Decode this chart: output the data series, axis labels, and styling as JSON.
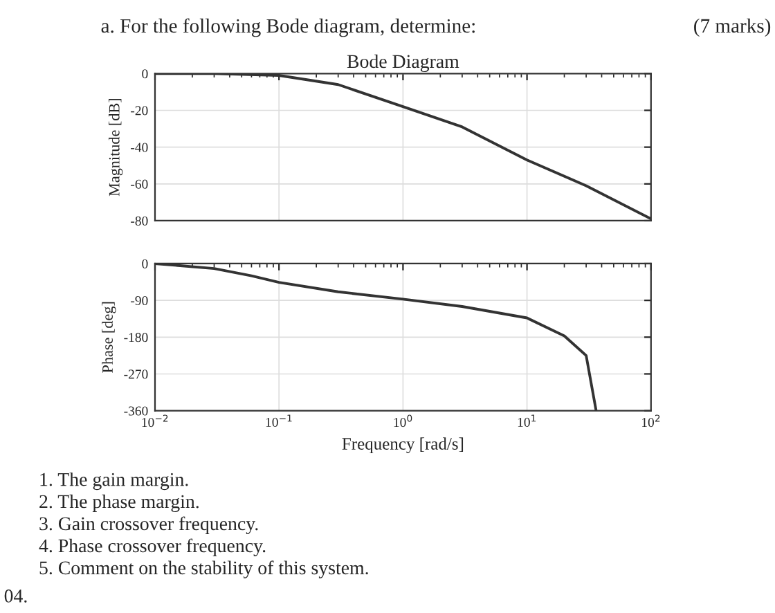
{
  "chart_data": [
    {
      "type": "line",
      "title": "Bode Diagram",
      "ylabel": "Magnitude [dB]",
      "log": "x",
      "grid": true,
      "tick_labels": "y",
      "marker": "none",
      "line_style": "solid",
      "xlim": [
        0.01,
        100
      ],
      "xticks": [
        {
          "value": 0.01,
          "label": null
        },
        {
          "value": 0.1,
          "label": null
        },
        {
          "value": 1,
          "label": null
        },
        {
          "value": 10,
          "label": null
        },
        {
          "value": 100,
          "label": null
        }
      ],
      "ylim": [
        -80,
        0
      ],
      "yticks": [
        0,
        -20,
        -40,
        -60,
        -80
      ],
      "series": [
        {
          "color": "#333333",
          "x": [
            0.01,
            0.03,
            0.1,
            0.3,
            1,
            3,
            10,
            30,
            100
          ],
          "values": [
            0,
            0,
            -1,
            -6,
            -18,
            -29,
            -47,
            -61,
            -79
          ]
        }
      ],
      "annotations": [
        "a. For the following Bode diagram, determine:",
        "(7 marks)"
      ]
    },
    {
      "type": "line",
      "xlabel": "Frequency [rad/s]",
      "ylabel": "Phase [deg]",
      "log": "x",
      "grid": true,
      "marker": "none",
      "line_style": "solid",
      "xlim": [
        0.01,
        100
      ],
      "xticks": [
        {
          "value": 0.01,
          "label": "10$^{−2}$"
        },
        {
          "value": 0.1,
          "label": "10$^{−1}$"
        },
        {
          "value": 1,
          "label": "10$^{0}$"
        },
        {
          "value": 10,
          "label": "10$^{1}$"
        },
        {
          "value": 100,
          "label": "10$^{2}$"
        }
      ],
      "ylim": [
        -360,
        0
      ],
      "yticks": [
        0,
        -90,
        -180,
        -270,
        -360
      ],
      "series": [
        {
          "color": "#333333",
          "x": [
            0.01,
            0.03,
            0.06,
            0.1,
            0.3,
            1,
            3,
            10,
            20,
            30,
            36
          ],
          "values": [
            0,
            -12,
            -30,
            -46,
            -69,
            -87,
            -105,
            -133,
            -177,
            -225,
            -358
          ]
        }
      ],
      "annotations": [
        "1. The gain margin.",
        "2. The phase margin.",
        "3. Gain crossover frequency.",
        "4. Phase crossover frequency.",
        "5. Comment on the stability of this system.",
        "04."
      ]
    }
  ]
}
